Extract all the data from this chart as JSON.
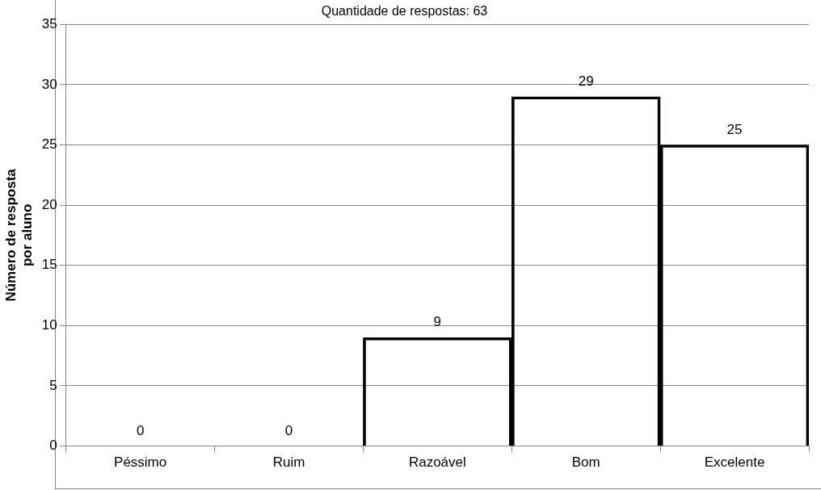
{
  "chart_data": {
    "type": "bar",
    "title": "Quantidade de respostas: 63",
    "ylabel": "Número de resposta\npor aluno",
    "categories": [
      "Péssimo",
      "Ruim",
      "Razoável",
      "Bom",
      "Excelente"
    ],
    "values": [
      0,
      0,
      9,
      29,
      25
    ],
    "color": "#000000",
    "ylim": [
      0,
      35
    ],
    "yticks": [
      0,
      5,
      10,
      15,
      20,
      25,
      30,
      35
    ],
    "grid": "y",
    "data_labels": true
  }
}
